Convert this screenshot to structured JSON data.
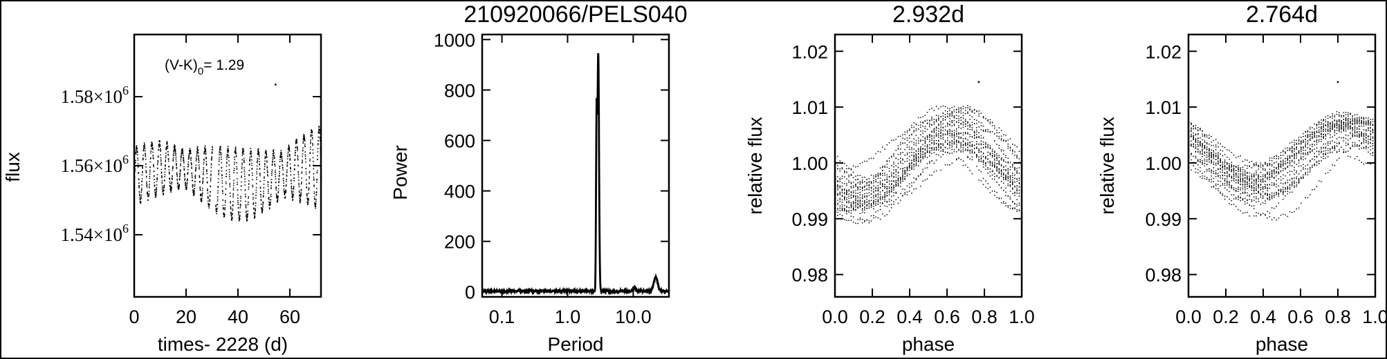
{
  "chart_data": [
    {
      "type": "scatter",
      "title": "",
      "xlabel": "times- 2228 (d)",
      "ylabel": "flux",
      "annotation": {
        "prefix": "(V-K)",
        "sub": "0",
        "suffix": "= 1.29"
      },
      "xlim": [
        0,
        72
      ],
      "ylim": [
        1522000,
        1598000
      ],
      "x_ticks": [
        {
          "v": 0,
          "label": "0"
        },
        {
          "v": 20,
          "label": "20"
        },
        {
          "v": 40,
          "label": "40"
        },
        {
          "v": 60,
          "label": "60"
        }
      ],
      "y_ticks": [
        {
          "v": 1540000,
          "mant": "1.54×10",
          "exp": "6"
        },
        {
          "v": 1560000,
          "mant": "1.56×10",
          "exp": "6"
        },
        {
          "v": 1580000,
          "mant": "1.58×10",
          "exp": "6"
        }
      ],
      "signal": {
        "baseline": 1557000,
        "period_d": 2.932,
        "amp_start": 8000,
        "amp_end": 12000,
        "sample_step_d": 0.04
      },
      "outliers": [
        {
          "x": 54.5,
          "y": 1583500
        }
      ],
      "color": "#000000"
    },
    {
      "type": "line",
      "title": "210920066/PELS040",
      "xlabel": "Period",
      "ylabel": "Power",
      "x_scale": "log",
      "xlim": [
        0.05,
        35
      ],
      "ylim": [
        -20,
        1020
      ],
      "x_ticks": [
        {
          "v": 0.1,
          "label": "0.1"
        },
        {
          "v": 1,
          "label": "1.0"
        },
        {
          "v": 10,
          "label": "10.0"
        }
      ],
      "y_ticks": [
        {
          "v": 0,
          "label": "0"
        },
        {
          "v": 200,
          "label": "200"
        },
        {
          "v": 400,
          "label": "400"
        },
        {
          "v": 600,
          "label": "600"
        },
        {
          "v": 800,
          "label": "800"
        },
        {
          "v": 1000,
          "label": "1000"
        }
      ],
      "peaks": [
        {
          "period": 2.932,
          "power": 940,
          "width_dex": 0.012
        },
        {
          "period": 2.764,
          "power": 650,
          "width_dex": 0.008
        },
        {
          "period": 10.5,
          "power": 15,
          "width_dex": 0.02
        },
        {
          "period": 22.0,
          "power": 55,
          "width_dex": 0.03
        }
      ],
      "noise_level": 6,
      "color": "#000000"
    },
    {
      "type": "scatter",
      "title": "2.932d",
      "xlabel": "phase",
      "ylabel": "relative flux",
      "xlim": [
        0,
        1
      ],
      "ylim": [
        0.976,
        1.023
      ],
      "x_ticks": [
        {
          "v": 0,
          "label": "0.0"
        },
        {
          "v": 0.2,
          "label": "0.2"
        },
        {
          "v": 0.4,
          "label": "0.4"
        },
        {
          "v": 0.6,
          "label": "0.6"
        },
        {
          "v": 0.8,
          "label": "0.8"
        },
        {
          "v": 1,
          "label": "1.0"
        }
      ],
      "y_ticks": [
        {
          "v": 0.98,
          "label": "0.98"
        },
        {
          "v": 0.99,
          "label": "0.99"
        },
        {
          "v": 1.0,
          "label": "1.00"
        },
        {
          "v": 1.01,
          "label": "1.01"
        },
        {
          "v": 1.02,
          "label": "1.02"
        }
      ],
      "fold": {
        "period_d": 2.932,
        "mean": 1.0,
        "amp": 0.007,
        "max_phase": 0.62
      },
      "outliers": [
        {
          "x": 0.77,
          "y": 1.0145
        }
      ],
      "color": "#000000"
    },
    {
      "type": "scatter",
      "title": "2.764d",
      "xlabel": "phase",
      "ylabel": "relative flux",
      "xlim": [
        0,
        1
      ],
      "ylim": [
        0.976,
        1.023
      ],
      "x_ticks": [
        {
          "v": 0,
          "label": "0.0"
        },
        {
          "v": 0.2,
          "label": "0.2"
        },
        {
          "v": 0.4,
          "label": "0.4"
        },
        {
          "v": 0.6,
          "label": "0.6"
        },
        {
          "v": 0.8,
          "label": "0.8"
        },
        {
          "v": 1,
          "label": "1.0"
        }
      ],
      "y_ticks": [
        {
          "v": 0.98,
          "label": "0.98"
        },
        {
          "v": 0.99,
          "label": "0.99"
        },
        {
          "v": 1.0,
          "label": "1.00"
        },
        {
          "v": 1.01,
          "label": "1.01"
        },
        {
          "v": 1.02,
          "label": "1.02"
        }
      ],
      "fold": {
        "period_d": 2.764,
        "mean": 1.0,
        "amp": 0.006,
        "max_phase": 0.85
      },
      "outliers": [
        {
          "x": 0.8,
          "y": 1.0145
        }
      ],
      "color": "#000000"
    }
  ]
}
